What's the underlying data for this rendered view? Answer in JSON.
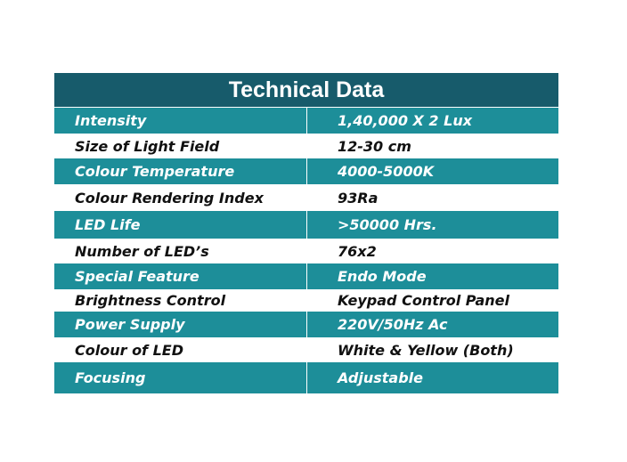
{
  "header": {
    "title": "Technical Data"
  },
  "table": {
    "rows": [
      [
        "Intensity",
        "1,40,000 X 2 Lux"
      ],
      [
        "Size of Light Field",
        "12-30 cm"
      ],
      [
        "Colour Temperature",
        "4000-5000K"
      ],
      [
        "Colour Rendering Index",
        "93Ra"
      ],
      [
        "LED Life",
        ">50000 Hrs."
      ],
      [
        "Number of LED’s",
        "76x2"
      ],
      [
        "Special Feature",
        "Endo Mode"
      ],
      [
        "Brightness Control",
        "Keypad Control Panel"
      ],
      [
        "Power Supply",
        "220V/50Hz Ac"
      ],
      [
        "Colour of LED",
        "White & Yellow (Both)"
      ],
      [
        "Focusing",
        "Adjustable"
      ]
    ]
  }
}
